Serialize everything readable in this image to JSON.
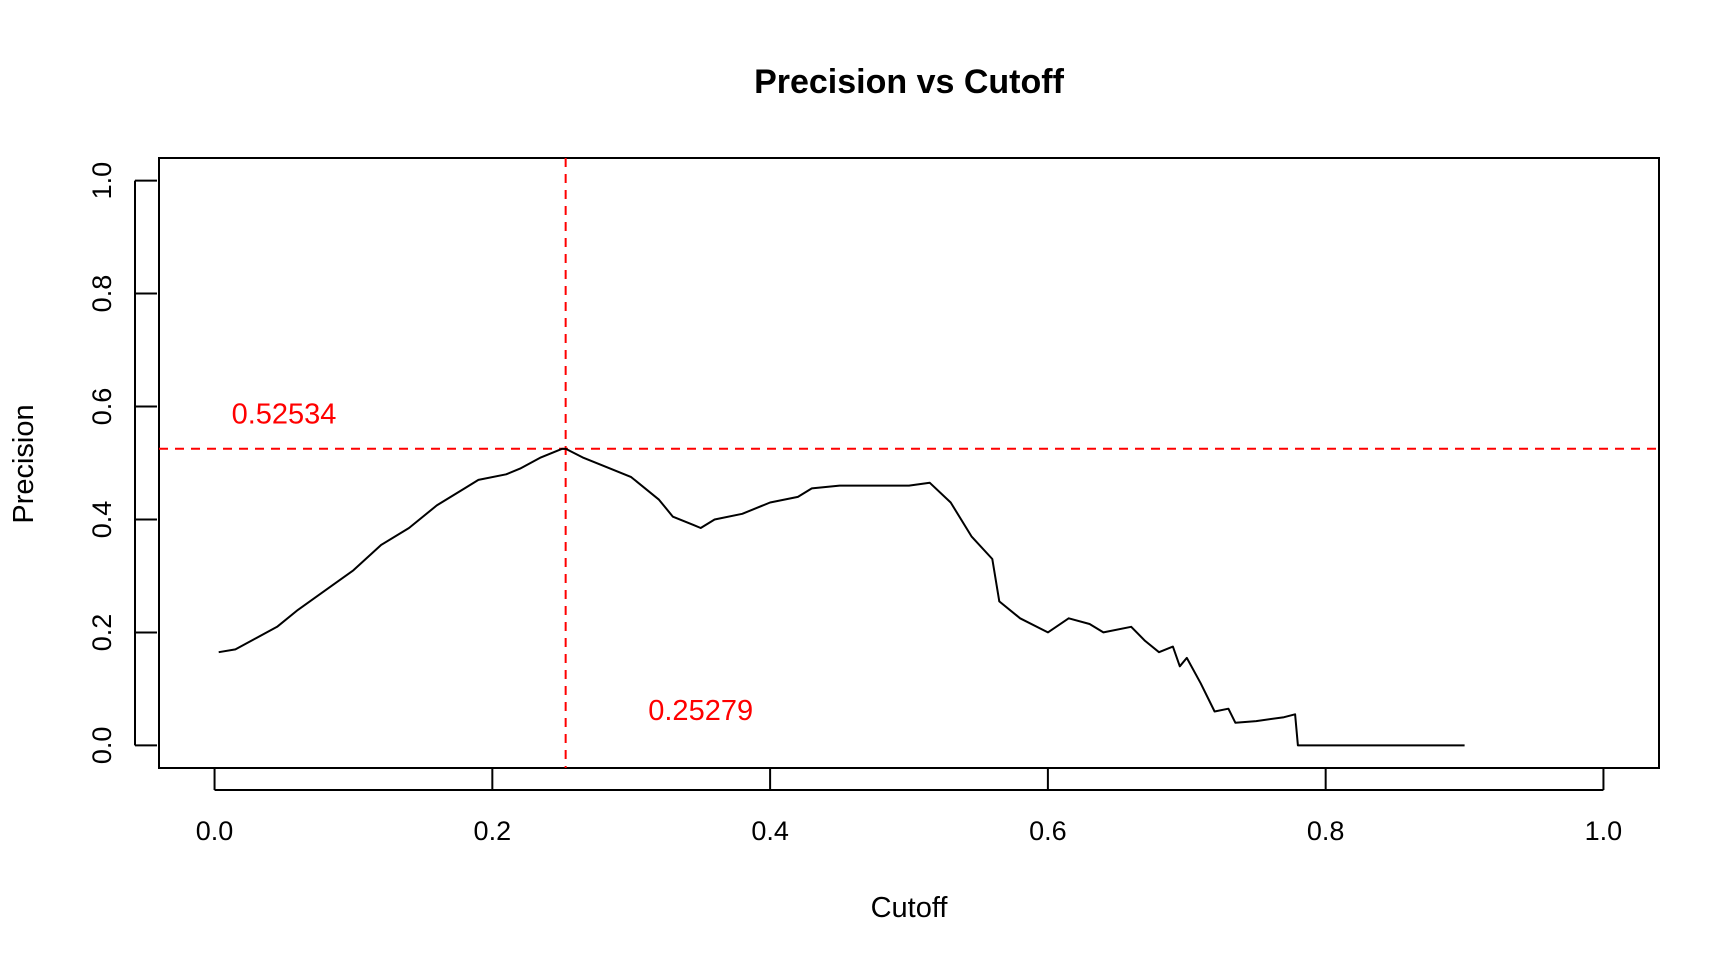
{
  "chart_data": {
    "type": "line",
    "title": "Precision vs Cutoff",
    "xlabel": "Cutoff",
    "ylabel": "Precision",
    "xlim": [
      -0.04,
      1.04
    ],
    "ylim": [
      -0.04,
      1.04
    ],
    "x_ticks": [
      0.0,
      0.2,
      0.4,
      0.6,
      0.8,
      1.0
    ],
    "x_tick_labels": [
      "0.0",
      "0.2",
      "0.4",
      "0.6",
      "0.8",
      "1.0"
    ],
    "y_ticks": [
      0.0,
      0.2,
      0.4,
      0.6,
      0.8,
      1.0
    ],
    "y_tick_labels": [
      "0.0",
      "0.2",
      "0.4",
      "0.6",
      "0.8",
      "1.0"
    ],
    "grid": false,
    "legend": "none",
    "series": [
      {
        "color": "#000000",
        "points": [
          [
            0.003,
            0.165
          ],
          [
            0.015,
            0.17
          ],
          [
            0.03,
            0.19
          ],
          [
            0.045,
            0.21
          ],
          [
            0.06,
            0.24
          ],
          [
            0.08,
            0.275
          ],
          [
            0.1,
            0.31
          ],
          [
            0.12,
            0.355
          ],
          [
            0.14,
            0.385
          ],
          [
            0.16,
            0.425
          ],
          [
            0.18,
            0.455
          ],
          [
            0.19,
            0.47
          ],
          [
            0.21,
            0.48
          ],
          [
            0.22,
            0.49
          ],
          [
            0.235,
            0.51
          ],
          [
            0.25,
            0.525
          ],
          [
            0.253,
            0.525
          ],
          [
            0.265,
            0.51
          ],
          [
            0.28,
            0.495
          ],
          [
            0.3,
            0.475
          ],
          [
            0.32,
            0.435
          ],
          [
            0.33,
            0.405
          ],
          [
            0.345,
            0.39
          ],
          [
            0.35,
            0.385
          ],
          [
            0.36,
            0.4
          ],
          [
            0.38,
            0.41
          ],
          [
            0.4,
            0.43
          ],
          [
            0.42,
            0.44
          ],
          [
            0.43,
            0.455
          ],
          [
            0.45,
            0.46
          ],
          [
            0.48,
            0.46
          ],
          [
            0.5,
            0.46
          ],
          [
            0.515,
            0.465
          ],
          [
            0.53,
            0.43
          ],
          [
            0.545,
            0.37
          ],
          [
            0.56,
            0.33
          ],
          [
            0.565,
            0.255
          ],
          [
            0.58,
            0.225
          ],
          [
            0.6,
            0.2
          ],
          [
            0.615,
            0.225
          ],
          [
            0.63,
            0.215
          ],
          [
            0.64,
            0.2
          ],
          [
            0.66,
            0.21
          ],
          [
            0.67,
            0.185
          ],
          [
            0.68,
            0.165
          ],
          [
            0.69,
            0.175
          ],
          [
            0.695,
            0.14
          ],
          [
            0.7,
            0.155
          ],
          [
            0.71,
            0.11
          ],
          [
            0.72,
            0.06
          ],
          [
            0.73,
            0.065
          ],
          [
            0.735,
            0.04
          ],
          [
            0.75,
            0.043
          ],
          [
            0.77,
            0.05
          ],
          [
            0.778,
            0.055
          ],
          [
            0.78,
            0.0
          ],
          [
            0.9,
            0.0
          ]
        ]
      }
    ],
    "reference_lines": [
      {
        "orientation": "horizontal",
        "value": 0.52534,
        "color": "#ff0000",
        "style": "dashed"
      },
      {
        "orientation": "vertical",
        "value": 0.25279,
        "color": "#ff0000",
        "style": "dashed"
      }
    ],
    "annotations": [
      {
        "text": "0.52534",
        "x": 0.05,
        "y": 0.57,
        "color": "#ff0000"
      },
      {
        "text": "0.25279",
        "x": 0.35,
        "y": 0.045,
        "color": "#ff0000"
      }
    ]
  }
}
